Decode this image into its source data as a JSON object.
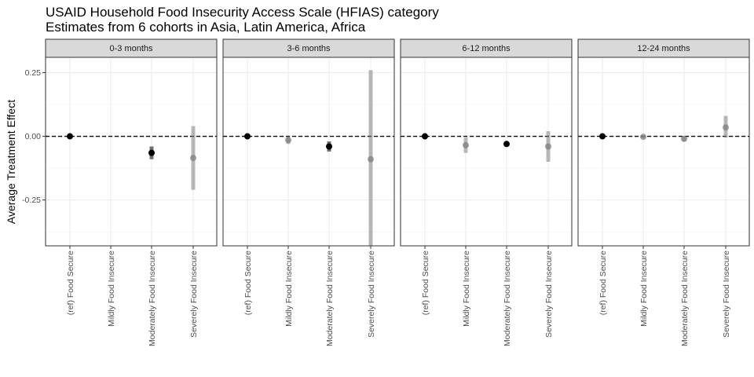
{
  "chart_data": {
    "type": "scatter",
    "title": "USAID Household Food Insecurity Access Scale (HFIAS) category",
    "subtitle": "Estimates from 6 cohorts in Asia, Latin America, Africa",
    "xlabel": "",
    "ylabel": "Average Treatment Effect",
    "ylim": [
      -0.43,
      0.31
    ],
    "yticks": [
      0.25,
      0.0,
      -0.25
    ],
    "ytick_labels": [
      "0.25",
      "0.00",
      "-0.25"
    ],
    "reference_line": 0,
    "grid": true,
    "categories": [
      "(ref) Food Secure",
      "Mildly Food Insecure",
      "Moderately Food Insecure",
      "Severely Food Insecure"
    ],
    "panels": [
      {
        "label": "0-3 months",
        "points": [
          {
            "category": "(ref) Food Secure",
            "estimate": 0.0,
            "low": 0.0,
            "high": 0.0,
            "shade": "#000000"
          },
          {
            "category": "Moderately Food Insecure",
            "estimate": -0.065,
            "low": -0.09,
            "high": -0.04,
            "shade": "#000000"
          },
          {
            "category": "Severely Food Insecure",
            "estimate": -0.085,
            "low": -0.21,
            "high": 0.04,
            "shade": "#808080"
          }
        ]
      },
      {
        "label": "3-6 months",
        "points": [
          {
            "category": "(ref) Food Secure",
            "estimate": 0.0,
            "low": 0.0,
            "high": 0.0,
            "shade": "#000000"
          },
          {
            "category": "Mildly Food Insecure",
            "estimate": -0.015,
            "low": -0.03,
            "high": 0.0,
            "shade": "#808080"
          },
          {
            "category": "Moderately Food Insecure",
            "estimate": -0.04,
            "low": -0.06,
            "high": -0.02,
            "shade": "#000000"
          },
          {
            "category": "Severely Food Insecure",
            "estimate": -0.09,
            "low": -0.43,
            "high": 0.26,
            "shade": "#808080"
          }
        ]
      },
      {
        "label": "6-12 months",
        "points": [
          {
            "category": "(ref) Food Secure",
            "estimate": 0.0,
            "low": 0.0,
            "high": 0.0,
            "shade": "#000000"
          },
          {
            "category": "Mildly Food Insecure",
            "estimate": -0.035,
            "low": -0.065,
            "high": -0.005,
            "shade": "#808080"
          },
          {
            "category": "Moderately Food Insecure",
            "estimate": -0.03,
            "low": -0.04,
            "high": -0.02,
            "shade": "#000000"
          },
          {
            "category": "Severely Food Insecure",
            "estimate": -0.04,
            "low": -0.1,
            "high": 0.02,
            "shade": "#808080"
          }
        ]
      },
      {
        "label": "12-24 months",
        "points": [
          {
            "category": "(ref) Food Secure",
            "estimate": 0.0,
            "low": 0.0,
            "high": 0.0,
            "shade": "#000000"
          },
          {
            "category": "Mildly Food Insecure",
            "estimate": -0.002,
            "low": -0.008,
            "high": 0.004,
            "shade": "#808080"
          },
          {
            "category": "Moderately Food Insecure",
            "estimate": -0.01,
            "low": -0.02,
            "high": 0.0,
            "shade": "#808080"
          },
          {
            "category": "Severely Food Insecure",
            "estimate": 0.035,
            "low": -0.005,
            "high": 0.08,
            "shade": "#808080"
          }
        ]
      }
    ]
  }
}
